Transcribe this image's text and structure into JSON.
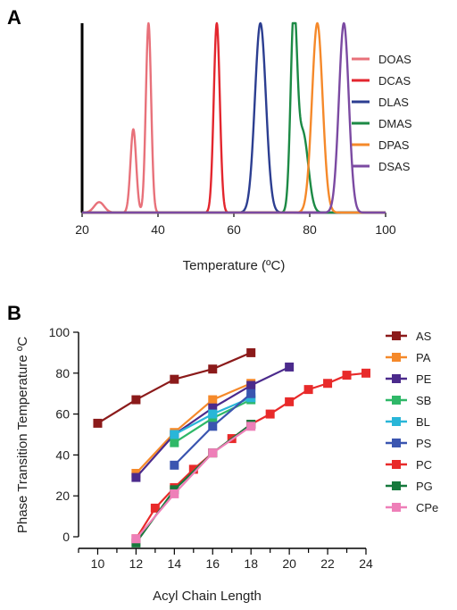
{
  "chart_data": [
    {
      "panel_label": "A",
      "type": "line",
      "xlabel": "Temperature (ºC)",
      "ylabel": "",
      "xlim": [
        20,
        100
      ],
      "ylim": [
        0,
        1
      ],
      "x_ticks": [
        20,
        40,
        60,
        80,
        100
      ],
      "grid": false,
      "legend_position": "right",
      "series": [
        {
          "name": "DOAS",
          "color": "#e8717a",
          "peaks": [
            {
              "center": 24.5,
              "height": 0.055,
              "width": 1.3
            },
            {
              "center": 33.5,
              "height": 0.44,
              "width": 0.75
            },
            {
              "center": 37.5,
              "height": 1.0,
              "width": 0.7
            }
          ]
        },
        {
          "name": "DCAS",
          "color": "#e3262e",
          "peaks": [
            {
              "center": 55.5,
              "height": 1.0,
              "width": 0.8
            }
          ]
        },
        {
          "name": "DLAS",
          "color": "#2c3e91",
          "peaks": [
            {
              "center": 67.0,
              "height": 1.0,
              "width": 1.45
            }
          ]
        },
        {
          "name": "DMAS",
          "color": "#1c8a45",
          "peaks": [
            {
              "center": 75.8,
              "height": 1.0,
              "width": 0.85
            },
            {
              "center": 78.2,
              "height": 0.42,
              "width": 1.4
            }
          ]
        },
        {
          "name": "DPAS",
          "color": "#f5892a",
          "peaks": [
            {
              "center": 82.0,
              "height": 1.0,
              "width": 1.4
            }
          ]
        },
        {
          "name": "DSAS",
          "color": "#7b4aa2",
          "peaks": [
            {
              "center": 89.0,
              "height": 1.0,
              "width": 1.3
            }
          ]
        }
      ]
    },
    {
      "panel_label": "B",
      "type": "line",
      "xlabel": "Acyl Chain Length",
      "ylabel": "Phase Transition Temperature ºC",
      "xlim": [
        9,
        24
      ],
      "ylim": [
        0,
        100
      ],
      "x_ticks": [
        10,
        12,
        14,
        16,
        18,
        20,
        22,
        24
      ],
      "y_ticks": [
        0,
        20,
        40,
        60,
        80,
        100
      ],
      "grid": false,
      "legend_position": "right",
      "series": [
        {
          "name": "AS",
          "color": "#8b1a1a",
          "x": [
            10,
            12,
            14,
            16,
            18
          ],
          "y": [
            55.5,
            67,
            77,
            82,
            90
          ]
        },
        {
          "name": "PA",
          "color": "#f5892a",
          "x": [
            12,
            14,
            16,
            18
          ],
          "y": [
            31,
            51,
            67,
            75
          ]
        },
        {
          "name": "PE",
          "color": "#4b2a8c",
          "x": [
            12,
            14,
            16,
            18,
            20
          ],
          "y": [
            29,
            50,
            63,
            74,
            83
          ]
        },
        {
          "name": "SB",
          "color": "#2fb868",
          "x": [
            14,
            16,
            18
          ],
          "y": [
            46,
            58,
            67
          ]
        },
        {
          "name": "BL",
          "color": "#29b6d8",
          "x": [
            14,
            16,
            18
          ],
          "y": [
            50,
            60,
            68
          ]
        },
        {
          "name": "PS",
          "color": "#3a55b0",
          "x": [
            14,
            16,
            18
          ],
          "y": [
            35,
            54,
            70
          ]
        },
        {
          "name": "PC",
          "color": "#e82a2a",
          "x": [
            12,
            13,
            14,
            15,
            16,
            17,
            18,
            19,
            20,
            21,
            22,
            23,
            24
          ],
          "y": [
            -1,
            14,
            24,
            33,
            41,
            48,
            55,
            60,
            66,
            72,
            75,
            79,
            80
          ]
        },
        {
          "name": "PG",
          "color": "#16793c",
          "x": [
            12,
            14,
            16,
            18
          ],
          "y": [
            -3,
            23,
            41,
            55
          ]
        },
        {
          "name": "CPe",
          "color": "#ee7fb8",
          "x": [
            12,
            14,
            16,
            18
          ],
          "y": [
            -1,
            21,
            41,
            54
          ]
        }
      ]
    }
  ]
}
